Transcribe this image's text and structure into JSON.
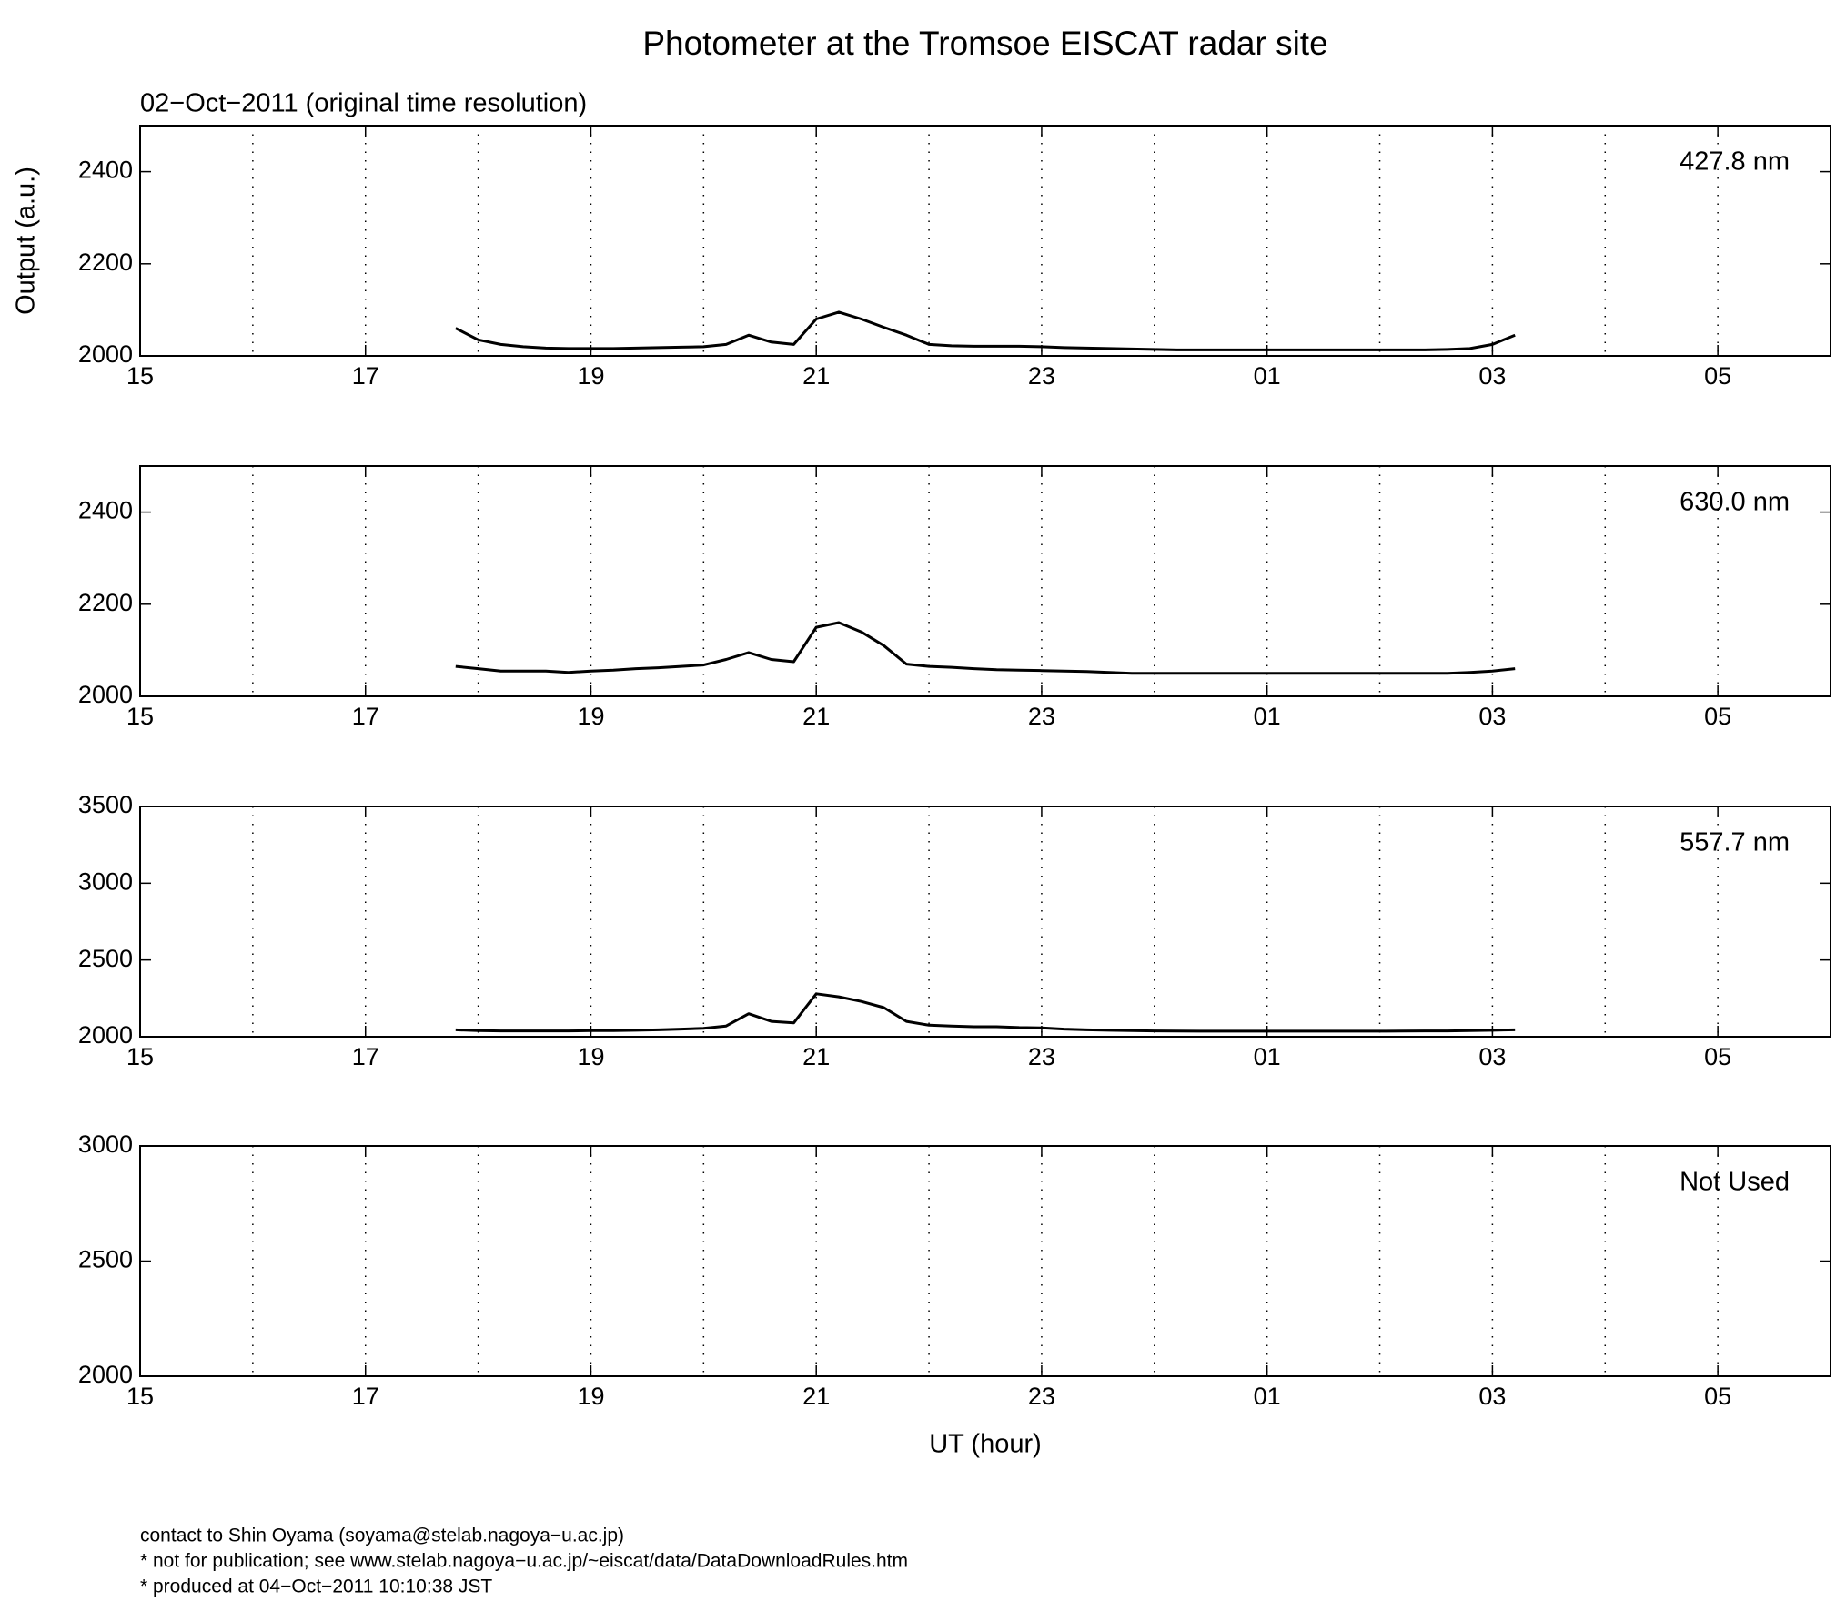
{
  "title": "Photometer at the Tromsoe EISCAT radar site",
  "subtitle": "02−Oct−2011 (original time resolution)",
  "footer": [
    "contact to Shin Oyama (soyama@stelab.nagoya−u.ac.jp)",
    "* not for publication; see www.stelab.nagoya−u.ac.jp/~eiscat/data/DataDownloadRules.htm",
    "* produced at 04−Oct−2011 10:10:38 JST"
  ],
  "chart_data": [
    {
      "type": "line",
      "label": "427.8 nm",
      "y_label": "Output (a.u.)",
      "xlim": [
        15,
        30
      ],
      "xticks": [
        15,
        17,
        19,
        21,
        23,
        {
          "value": 25,
          "label": "01"
        },
        {
          "value": 27,
          "label": "03"
        },
        {
          "value": 29,
          "label": "05"
        }
      ],
      "xgrid": [
        16,
        17,
        18,
        19,
        20,
        21,
        22,
        23,
        24,
        25,
        26,
        27,
        28,
        29
      ],
      "ylim": [
        2000,
        2500
      ],
      "yticks": [
        2000,
        2200,
        2400
      ],
      "x": [
        17.8,
        18.0,
        18.2,
        18.4,
        18.6,
        18.8,
        19.0,
        19.2,
        19.4,
        19.6,
        19.8,
        20.0,
        20.2,
        20.4,
        20.6,
        20.8,
        21.0,
        21.2,
        21.4,
        21.6,
        21.8,
        22.0,
        22.2,
        22.4,
        22.6,
        22.8,
        23.0,
        23.2,
        23.4,
        23.6,
        23.8,
        24.0,
        24.2,
        24.4,
        24.6,
        24.8,
        25.0,
        25.2,
        25.4,
        25.6,
        25.8,
        26.0,
        26.2,
        26.4,
        26.6,
        26.8,
        27.0,
        27.2
      ],
      "series": [
        {
          "color": "#000000",
          "values": [
            2060,
            2035,
            2025,
            2020,
            2017,
            2016,
            2016,
            2016,
            2017,
            2018,
            2019,
            2020,
            2025,
            2045,
            2030,
            2025,
            2080,
            2095,
            2080,
            2062,
            2045,
            2025,
            2022,
            2021,
            2021,
            2021,
            2020,
            2018,
            2017,
            2016,
            2015,
            2014,
            2013,
            2013,
            2013,
            2013,
            2013,
            2013,
            2013,
            2013,
            2013,
            2013,
            2013,
            2013,
            2014,
            2016,
            2025,
            2045
          ]
        }
      ]
    },
    {
      "type": "line",
      "label": "630.0 nm",
      "xlim": [
        15,
        30
      ],
      "xticks": [
        15,
        17,
        19,
        21,
        23,
        {
          "value": 25,
          "label": "01"
        },
        {
          "value": 27,
          "label": "03"
        },
        {
          "value": 29,
          "label": "05"
        }
      ],
      "xgrid": [
        16,
        17,
        18,
        19,
        20,
        21,
        22,
        23,
        24,
        25,
        26,
        27,
        28,
        29
      ],
      "ylim": [
        2000,
        2500
      ],
      "yticks": [
        2000,
        2200,
        2400
      ],
      "x": [
        17.8,
        18.0,
        18.2,
        18.4,
        18.6,
        18.8,
        19.0,
        19.2,
        19.4,
        19.6,
        19.8,
        20.0,
        20.2,
        20.4,
        20.6,
        20.8,
        21.0,
        21.2,
        21.4,
        21.6,
        21.8,
        22.0,
        22.2,
        22.4,
        22.6,
        22.8,
        23.0,
        23.2,
        23.4,
        23.6,
        23.8,
        24.0,
        24.2,
        24.4,
        24.6,
        24.8,
        25.0,
        25.2,
        25.4,
        25.6,
        25.8,
        26.0,
        26.2,
        26.4,
        26.6,
        26.8,
        27.0,
        27.2
      ],
      "series": [
        {
          "color": "#000000",
          "values": [
            2065,
            2060,
            2055,
            2055,
            2055,
            2052,
            2055,
            2057,
            2060,
            2062,
            2065,
            2068,
            2080,
            2095,
            2080,
            2075,
            2150,
            2160,
            2140,
            2110,
            2070,
            2065,
            2063,
            2060,
            2058,
            2057,
            2056,
            2055,
            2054,
            2052,
            2050,
            2050,
            2050,
            2050,
            2050,
            2050,
            2050,
            2050,
            2050,
            2050,
            2050,
            2050,
            2050,
            2050,
            2050,
            2052,
            2055,
            2060
          ]
        }
      ]
    },
    {
      "type": "line",
      "label": "557.7 nm",
      "xlim": [
        15,
        30
      ],
      "xticks": [
        15,
        17,
        19,
        21,
        23,
        {
          "value": 25,
          "label": "01"
        },
        {
          "value": 27,
          "label": "03"
        },
        {
          "value": 29,
          "label": "05"
        }
      ],
      "xgrid": [
        16,
        17,
        18,
        19,
        20,
        21,
        22,
        23,
        24,
        25,
        26,
        27,
        28,
        29
      ],
      "ylim": [
        2000,
        3500
      ],
      "yticks": [
        2000,
        2500,
        3000,
        3500
      ],
      "x": [
        17.8,
        18.0,
        18.2,
        18.4,
        18.6,
        18.8,
        19.0,
        19.2,
        19.4,
        19.6,
        19.8,
        20.0,
        20.2,
        20.4,
        20.6,
        20.8,
        21.0,
        21.2,
        21.4,
        21.6,
        21.8,
        22.0,
        22.2,
        22.4,
        22.6,
        22.8,
        23.0,
        23.2,
        23.4,
        23.6,
        23.8,
        24.0,
        24.2,
        24.4,
        24.6,
        24.8,
        25.0,
        25.2,
        25.4,
        25.6,
        25.8,
        26.0,
        26.2,
        26.4,
        26.6,
        26.8,
        27.0,
        27.2
      ],
      "series": [
        {
          "color": "#000000",
          "values": [
            2045,
            2040,
            2038,
            2038,
            2038,
            2038,
            2040,
            2040,
            2042,
            2045,
            2050,
            2055,
            2070,
            2150,
            2100,
            2090,
            2280,
            2260,
            2230,
            2190,
            2100,
            2075,
            2070,
            2065,
            2065,
            2060,
            2058,
            2050,
            2045,
            2042,
            2040,
            2038,
            2037,
            2036,
            2036,
            2036,
            2036,
            2036,
            2036,
            2036,
            2036,
            2036,
            2037,
            2038,
            2038,
            2040,
            2042,
            2045
          ]
        }
      ]
    },
    {
      "type": "line",
      "label": "Not Used",
      "x_label": "UT (hour)",
      "xlim": [
        15,
        30
      ],
      "xticks": [
        15,
        17,
        19,
        21,
        23,
        {
          "value": 25,
          "label": "01"
        },
        {
          "value": 27,
          "label": "03"
        },
        {
          "value": 29,
          "label": "05"
        }
      ],
      "xgrid": [
        16,
        17,
        18,
        19,
        20,
        21,
        22,
        23,
        24,
        25,
        26,
        27,
        28,
        29
      ],
      "ylim": [
        2000,
        3000
      ],
      "yticks": [
        2000,
        2500,
        3000
      ],
      "x": [],
      "series": []
    }
  ]
}
